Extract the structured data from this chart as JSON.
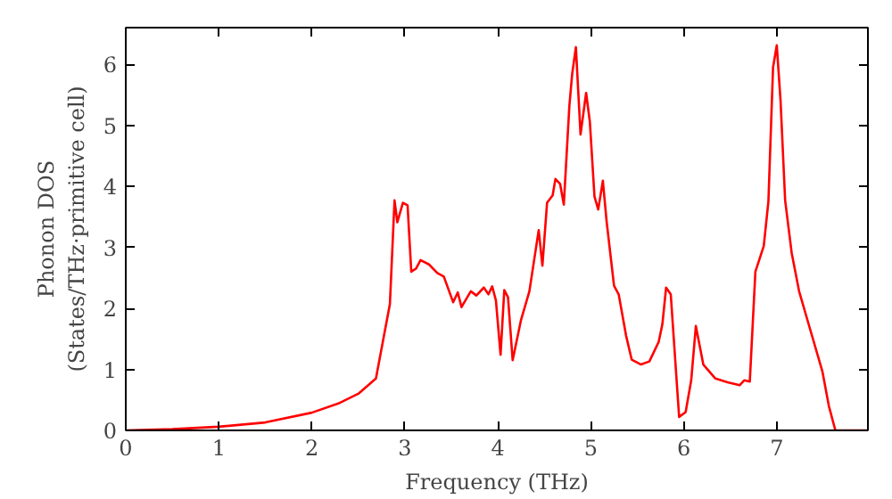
{
  "chart_data": {
    "type": "line",
    "xlabel": "Frequency (THz)",
    "ylabel": "Phonon DOS\n(States/THz·primitive cell)",
    "xlim": [
      0,
      7.98
    ],
    "ylim": [
      0,
      6.6
    ],
    "xticks": [
      0,
      1,
      2,
      3,
      4,
      5,
      6,
      7
    ],
    "yticks": [
      0,
      1,
      2,
      3,
      4,
      5,
      6
    ],
    "grid": false,
    "series": [
      {
        "color": "#ff0000",
        "x": [
          0,
          0.5,
          1,
          1.5,
          2,
          2.3,
          2.5,
          2.69,
          2.84,
          2.89,
          2.92,
          2.98,
          3.03,
          3.07,
          3.12,
          3.17,
          3.26,
          3.35,
          3.42,
          3.52,
          3.57,
          3.61,
          3.71,
          3.77,
          3.85,
          3.9,
          3.94,
          3.98,
          4.03,
          4.07,
          4.11,
          4.16,
          4.25,
          4.34,
          4.44,
          4.48,
          4.53,
          4.59,
          4.62,
          4.67,
          4.71,
          4.77,
          4.8,
          4.84,
          4.89,
          4.95,
          4.99,
          5.04,
          5.08,
          5.13,
          5.17,
          5.25,
          5.3,
          5.38,
          5.44,
          5.54,
          5.63,
          5.73,
          5.77,
          5.81,
          5.86,
          5.95,
          6.02,
          6.08,
          6.13,
          6.21,
          6.34,
          6.47,
          6.6,
          6.65,
          6.71,
          6.77,
          6.86,
          6.91,
          6.96,
          7.0,
          7.04,
          7.09,
          7.16,
          7.24,
          7.36,
          7.49,
          7.56,
          7.63,
          7.97
        ],
        "values": [
          0,
          0.02,
          0.06,
          0.13,
          0.29,
          0.45,
          0.6,
          0.85,
          2.07,
          3.77,
          3.41,
          3.73,
          3.69,
          2.6,
          2.65,
          2.79,
          2.72,
          2.58,
          2.52,
          2.1,
          2.26,
          2.02,
          2.28,
          2.21,
          2.34,
          2.23,
          2.36,
          2.13,
          1.24,
          2.3,
          2.18,
          1.15,
          1.81,
          2.28,
          3.28,
          2.7,
          3.73,
          3.85,
          4.12,
          4.04,
          3.7,
          5.32,
          5.84,
          6.28,
          4.85,
          5.53,
          5.06,
          3.83,
          3.62,
          4.09,
          3.43,
          2.37,
          2.23,
          1.55,
          1.16,
          1.08,
          1.13,
          1.45,
          1.74,
          2.34,
          2.23,
          0.22,
          0.3,
          0.82,
          1.71,
          1.08,
          0.85,
          0.79,
          0.74,
          0.82,
          0.8,
          2.6,
          3.02,
          3.75,
          5.95,
          6.31,
          5.42,
          3.77,
          2.91,
          2.28,
          1.65,
          0.97,
          0.4,
          0,
          0
        ]
      }
    ]
  }
}
